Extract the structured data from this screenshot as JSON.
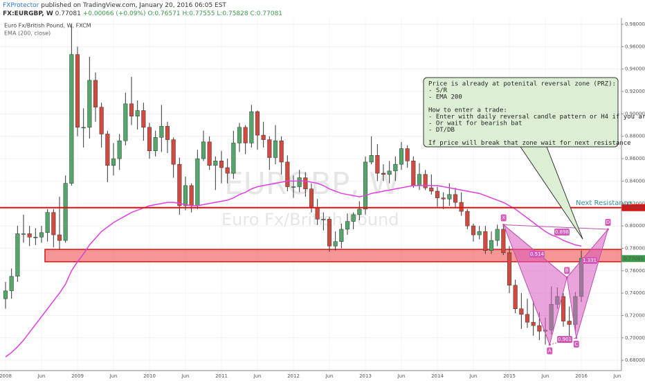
{
  "header": {
    "author": "FXProtector",
    "published": "published on TradingView.com, January 20, 2016 06:05 EST",
    "symbol": "FX:EURGBP, W",
    "last": "0.77081",
    "change": "+0.00066 (+0.09%)",
    "ohlc": [
      "O:0.76571",
      "H:0.77555",
      "L:0.75828",
      "C:0.77081"
    ]
  },
  "chart_data": {
    "type": "candlestick",
    "legend": [
      "Euro Fx/British Pound, W, FXCM",
      "EMA (200, close)"
    ],
    "watermark": [
      "EURGBP, W",
      "Euro Fx/British Pound"
    ],
    "up_color": "#53a76b",
    "down_color": "#d04a3f",
    "ema_color": "#e23de0",
    "x_axis_labels": [
      "2008",
      "Jun",
      "2009",
      "Jun",
      "2010",
      "Jun",
      "2011",
      "Jun",
      "2012",
      "Jun",
      "2013",
      "Jun",
      "2014",
      "Jun",
      "2015",
      "Jun",
      "2016",
      "Jun"
    ],
    "x": [
      "2008-01",
      "2008-02",
      "2008-03",
      "2008-04",
      "2008-05",
      "2008-06",
      "2008-07",
      "2008-08",
      "2008-09",
      "2008-10",
      "2008-11",
      "2008-12",
      "2009-01",
      "2009-02",
      "2009-03",
      "2009-04",
      "2009-05",
      "2009-06",
      "2009-07",
      "2009-08",
      "2009-09",
      "2009-10",
      "2009-11",
      "2009-12",
      "2010-01",
      "2010-02",
      "2010-03",
      "2010-04",
      "2010-05",
      "2010-06",
      "2010-07",
      "2010-08",
      "2010-09",
      "2010-10",
      "2010-11",
      "2010-12",
      "2011-01",
      "2011-02",
      "2011-03",
      "2011-04",
      "2011-05",
      "2011-06",
      "2011-07",
      "2011-08",
      "2011-09",
      "2011-10",
      "2011-11",
      "2011-12",
      "2012-01",
      "2012-02",
      "2012-03",
      "2012-04",
      "2012-05",
      "2012-06",
      "2012-07",
      "2012-08",
      "2012-09",
      "2012-10",
      "2012-11",
      "2012-12",
      "2013-01",
      "2013-02",
      "2013-03",
      "2013-04",
      "2013-05",
      "2013-06",
      "2013-07",
      "2013-08",
      "2013-09",
      "2013-10",
      "2013-11",
      "2013-12",
      "2014-01",
      "2014-02",
      "2014-03",
      "2014-04",
      "2014-05",
      "2014-06",
      "2014-07",
      "2014-08",
      "2014-09",
      "2014-10",
      "2014-11",
      "2014-12",
      "2015-01",
      "2015-02",
      "2015-03",
      "2015-04",
      "2015-05",
      "2015-06",
      "2015-07",
      "2015-08",
      "2015-09",
      "2015-10",
      "2015-11",
      "2015-12",
      "2016-01"
    ],
    "open": [
      0.735,
      0.742,
      0.755,
      0.793,
      0.793,
      0.79,
      0.79,
      0.794,
      0.812,
      0.792,
      0.787,
      0.838,
      0.953,
      0.888,
      0.888,
      0.93,
      0.906,
      0.882,
      0.854,
      0.86,
      0.876,
      0.909,
      0.898,
      0.903,
      0.888,
      0.867,
      0.879,
      0.889,
      0.877,
      0.855,
      0.818,
      0.836,
      0.818,
      0.86,
      0.875,
      0.854,
      0.858,
      0.852,
      0.847,
      0.874,
      0.888,
      0.874,
      0.902,
      0.881,
      0.877,
      0.861,
      0.876,
      0.857,
      0.835,
      0.835,
      0.843,
      0.833,
      0.816,
      0.806,
      0.806,
      0.782,
      0.786,
      0.797,
      0.804,
      0.81,
      0.815,
      0.857,
      0.863,
      0.847,
      0.846,
      0.849,
      0.855,
      0.869,
      0.858,
      0.836,
      0.846,
      0.834,
      0.831,
      0.825,
      0.824,
      0.828,
      0.821,
      0.813,
      0.8,
      0.792,
      0.795,
      0.778,
      0.787,
      0.797,
      0.776,
      0.747,
      0.726,
      0.721,
      0.714,
      0.711,
      0.706,
      0.707,
      0.73,
      0.737,
      0.715,
      0.712,
      0.737
    ],
    "high": [
      0.75,
      0.762,
      0.8,
      0.81,
      0.8,
      0.798,
      0.8,
      0.815,
      0.815,
      0.826,
      0.845,
      0.98,
      0.96,
      0.905,
      0.951,
      0.937,
      0.91,
      0.885,
      0.874,
      0.882,
      0.919,
      0.933,
      0.912,
      0.91,
      0.892,
      0.885,
      0.908,
      0.893,
      0.879,
      0.861,
      0.844,
      0.838,
      0.868,
      0.885,
      0.88,
      0.862,
      0.867,
      0.86,
      0.885,
      0.892,
      0.89,
      0.908,
      0.903,
      0.893,
      0.88,
      0.89,
      0.88,
      0.863,
      0.845,
      0.85,
      0.848,
      0.838,
      0.824,
      0.812,
      0.808,
      0.795,
      0.802,
      0.811,
      0.812,
      0.822,
      0.862,
      0.88,
      0.873,
      0.855,
      0.858,
      0.862,
      0.875,
      0.872,
      0.862,
      0.856,
      0.85,
      0.846,
      0.835,
      0.83,
      0.838,
      0.834,
      0.83,
      0.815,
      0.802,
      0.8,
      0.8,
      0.795,
      0.801,
      0.8,
      0.782,
      0.752,
      0.74,
      0.735,
      0.733,
      0.723,
      0.718,
      0.746,
      0.745,
      0.74,
      0.728,
      0.741,
      0.778
    ],
    "low": [
      0.726,
      0.735,
      0.75,
      0.785,
      0.782,
      0.783,
      0.785,
      0.786,
      0.781,
      0.779,
      0.785,
      0.836,
      0.88,
      0.87,
      0.878,
      0.893,
      0.87,
      0.839,
      0.845,
      0.85,
      0.872,
      0.89,
      0.886,
      0.876,
      0.86,
      0.862,
      0.866,
      0.865,
      0.843,
      0.81,
      0.814,
      0.812,
      0.815,
      0.858,
      0.85,
      0.832,
      0.838,
      0.838,
      0.842,
      0.866,
      0.864,
      0.87,
      0.868,
      0.87,
      0.85,
      0.855,
      0.846,
      0.831,
      0.825,
      0.83,
      0.826,
      0.812,
      0.801,
      0.796,
      0.777,
      0.778,
      0.78,
      0.792,
      0.797,
      0.805,
      0.81,
      0.855,
      0.84,
      0.84,
      0.838,
      0.84,
      0.85,
      0.852,
      0.834,
      0.832,
      0.832,
      0.828,
      0.817,
      0.815,
      0.818,
      0.816,
      0.809,
      0.797,
      0.786,
      0.788,
      0.775,
      0.775,
      0.782,
      0.774,
      0.74,
      0.722,
      0.708,
      0.709,
      0.702,
      0.698,
      0.694,
      0.703,
      0.726,
      0.71,
      0.699,
      0.706,
      0.732
    ],
    "close": [
      0.742,
      0.755,
      0.793,
      0.793,
      0.79,
      0.79,
      0.794,
      0.812,
      0.792,
      0.787,
      0.838,
      0.953,
      0.888,
      0.888,
      0.93,
      0.906,
      0.882,
      0.854,
      0.86,
      0.876,
      0.909,
      0.898,
      0.903,
      0.888,
      0.867,
      0.879,
      0.889,
      0.877,
      0.855,
      0.818,
      0.836,
      0.818,
      0.86,
      0.875,
      0.854,
      0.858,
      0.852,
      0.847,
      0.874,
      0.888,
      0.874,
      0.902,
      0.881,
      0.877,
      0.861,
      0.876,
      0.857,
      0.835,
      0.835,
      0.843,
      0.833,
      0.816,
      0.806,
      0.806,
      0.782,
      0.786,
      0.797,
      0.804,
      0.81,
      0.815,
      0.857,
      0.863,
      0.847,
      0.846,
      0.849,
      0.855,
      0.869,
      0.858,
      0.836,
      0.846,
      0.834,
      0.831,
      0.825,
      0.824,
      0.828,
      0.821,
      0.813,
      0.8,
      0.792,
      0.795,
      0.778,
      0.787,
      0.797,
      0.776,
      0.747,
      0.726,
      0.721,
      0.714,
      0.711,
      0.706,
      0.707,
      0.73,
      0.737,
      0.715,
      0.712,
      0.737,
      0.771
    ],
    "ema": [
      0.683,
      0.687,
      0.692,
      0.698,
      0.705,
      0.712,
      0.719,
      0.726,
      0.733,
      0.74,
      0.748,
      0.76,
      0.768,
      0.775,
      0.783,
      0.789,
      0.795,
      0.799,
      0.803,
      0.806,
      0.809,
      0.812,
      0.814,
      0.816,
      0.818,
      0.819,
      0.82,
      0.821,
      0.821,
      0.82,
      0.819,
      0.818,
      0.818,
      0.819,
      0.82,
      0.821,
      0.822,
      0.823,
      0.825,
      0.828,
      0.83,
      0.833,
      0.835,
      0.836,
      0.837,
      0.838,
      0.839,
      0.84,
      0.84,
      0.84,
      0.84,
      0.839,
      0.838,
      0.836,
      0.833,
      0.831,
      0.829,
      0.828,
      0.827,
      0.826,
      0.827,
      0.829,
      0.83,
      0.831,
      0.832,
      0.833,
      0.834,
      0.835,
      0.836,
      0.836,
      0.836,
      0.836,
      0.836,
      0.835,
      0.834,
      0.833,
      0.832,
      0.831,
      0.83,
      0.829,
      0.827,
      0.825,
      0.823,
      0.821,
      0.818,
      0.815,
      0.811,
      0.807,
      0.803,
      0.799,
      0.795,
      0.792,
      0.79,
      0.787,
      0.785,
      0.783,
      0.782
    ],
    "ylim": [
      0.6708,
      0.9856
    ],
    "yticks": [
      {
        "value": 0.68,
        "label": "0.68000"
      },
      {
        "value": 0.7,
        "label": "0.70000"
      },
      {
        "value": 0.72,
        "label": "0.72000"
      },
      {
        "value": 0.74,
        "label": "0.74000"
      },
      {
        "value": 0.76,
        "label": "0.76000"
      },
      {
        "value": 0.78,
        "label": "0.78000"
      },
      {
        "value": 0.8,
        "label": "0.80000"
      },
      {
        "value": 0.82,
        "label": "0.82000"
      },
      {
        "value": 0.84,
        "label": "0.84000"
      },
      {
        "value": 0.86,
        "label": "0.86000"
      },
      {
        "value": 0.88,
        "label": "0.88000"
      },
      {
        "value": 0.9,
        "label": "0.90000"
      },
      {
        "value": 0.92,
        "label": "0.92000"
      },
      {
        "value": 0.94,
        "label": "0.94000"
      },
      {
        "value": 0.96,
        "label": "0.96000"
      },
      {
        "value": 0.98,
        "label": "0.98000"
      }
    ],
    "resistance": 0.81628,
    "last_price": 0.77081,
    "zone": [
      0.768,
      0.779
    ],
    "next_resistance_label": "Next Resistance",
    "pattern": {
      "labels": [
        "X",
        "A",
        "B",
        "C",
        "D"
      ],
      "x": [
        2014.92,
        2015.56,
        2015.8,
        2015.93,
        2016.37
      ],
      "values": [
        0.801,
        0.694,
        0.754,
        0.7,
        0.797
      ],
      "ratios": [
        "0.898",
        "0.514",
        "1.331",
        "0.901"
      ]
    },
    "note": [
      [
        "Price is already at potenital reversal zone (PRZ):",
        "- S/R",
        "- EMA 200"
      ],
      [
        "How to enter a trade:",
        "- Enter with daily reversal candle pattern or H4 if you are agressive",
        "- Or wait for bearish bat",
        "- DT/DB"
      ],
      [
        "If price will break that zone wait for next resistance"
      ]
    ]
  }
}
